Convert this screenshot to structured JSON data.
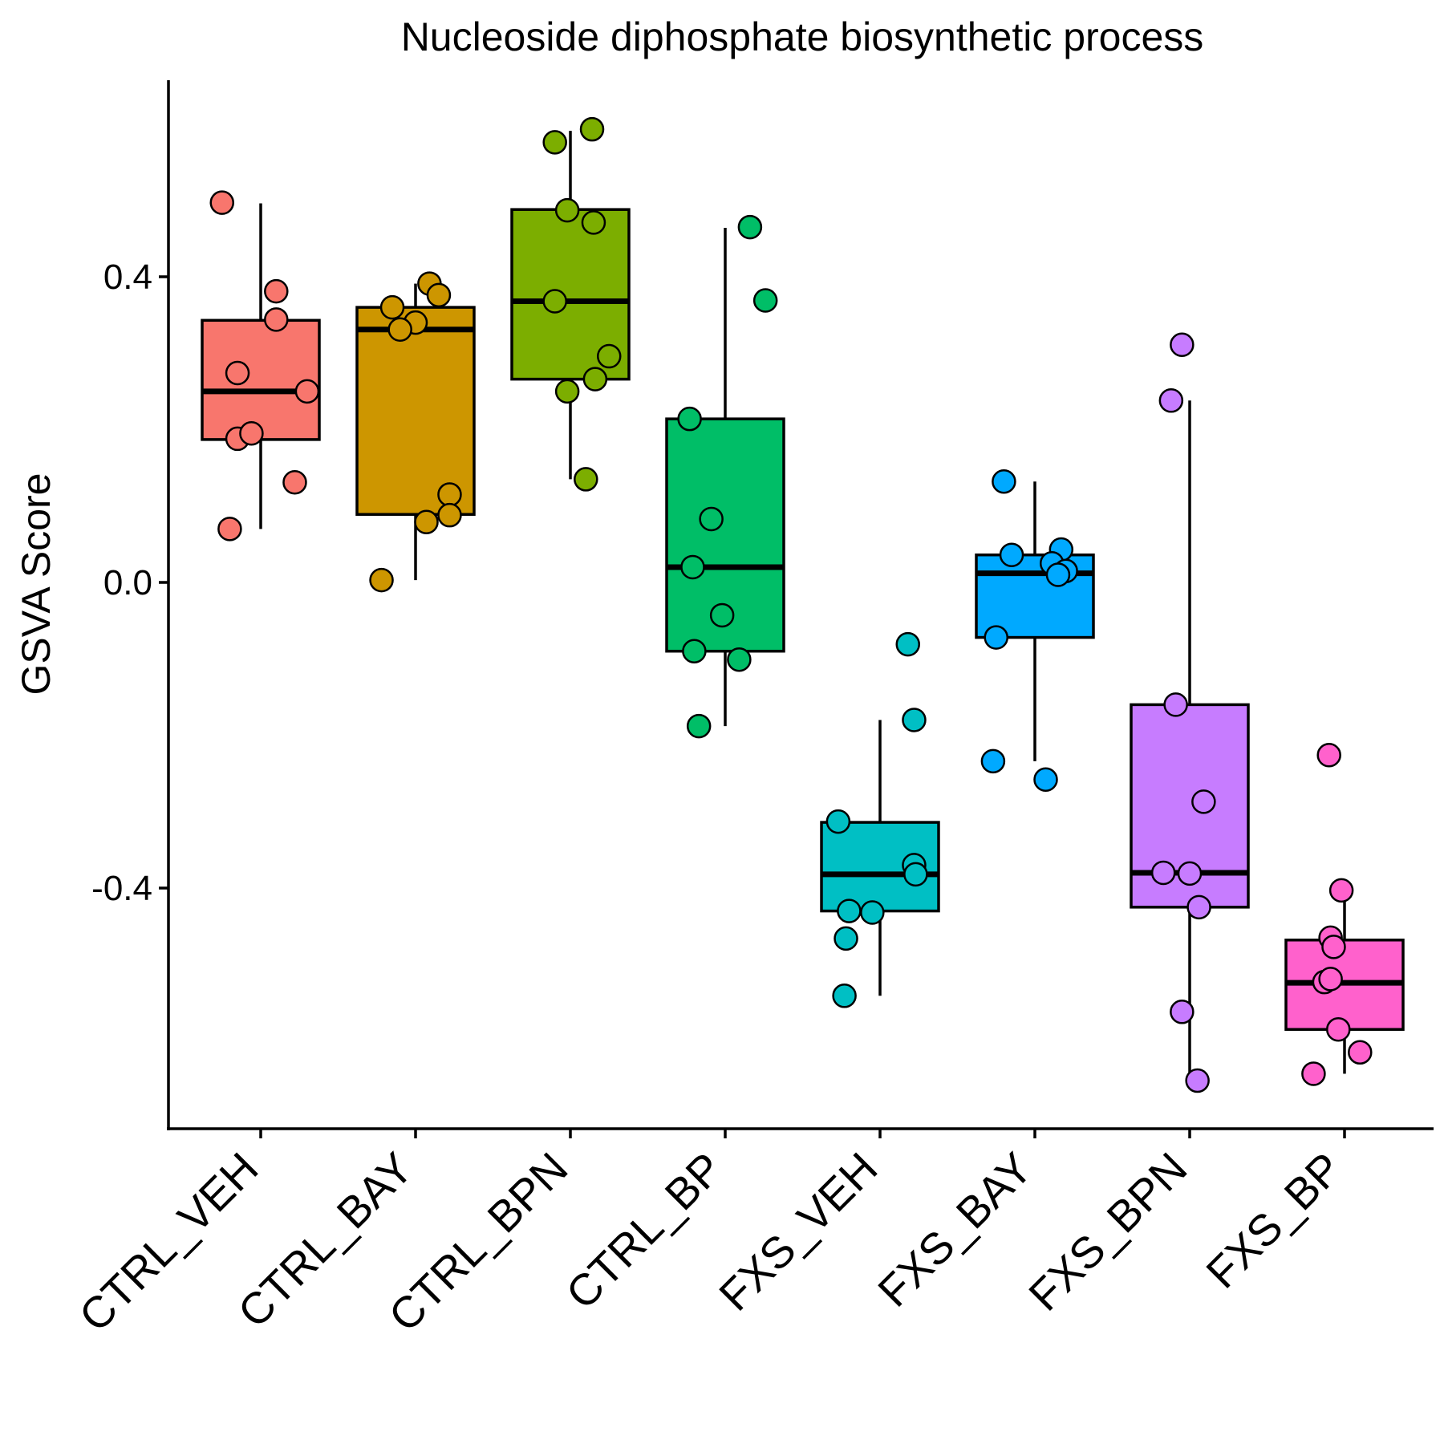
{
  "chart_data": {
    "type": "boxplot",
    "title": "Nucleoside diphosphate biosynthetic process",
    "xlabel": "",
    "ylabel": "GSVA Score",
    "ylim": [
      -0.71,
      0.65
    ],
    "yticks": [
      -0.4,
      0.0,
      0.4
    ],
    "ytick_labels": [
      "-0.4",
      "0.0",
      "0.4"
    ],
    "grid": false,
    "legend": "none",
    "categories": [
      "CTRL_VEH",
      "CTRL_BAY",
      "CTRL_BPN",
      "CTRL_BP",
      "FXS_VEH",
      "FXS_BAY",
      "FXS_BPN",
      "FXS_BP"
    ],
    "colors": [
      "#F8766D",
      "#CD9600",
      "#7CAE00",
      "#00BE67",
      "#00BFC4",
      "#00A9FF",
      "#C77CFF",
      "#FF61CC"
    ],
    "groups": [
      {
        "name": "CTRL_VEH",
        "whisker_low": 0.07,
        "q1": 0.187,
        "median": 0.25,
        "q3": 0.343,
        "whisker_high": 0.496,
        "points": [
          {
            "j": -0.25,
            "y": 0.497
          },
          {
            "j": 0.1,
            "y": 0.381
          },
          {
            "j": 0.1,
            "y": 0.344
          },
          {
            "j": -0.15,
            "y": 0.274
          },
          {
            "j": 0.3,
            "y": 0.25
          },
          {
            "j": -0.15,
            "y": 0.188
          },
          {
            "j": -0.06,
            "y": 0.195
          },
          {
            "j": 0.22,
            "y": 0.131
          },
          {
            "j": -0.2,
            "y": 0.07
          }
        ]
      },
      {
        "name": "CTRL_BAY",
        "whisker_low": 0.003,
        "q1": 0.089,
        "median": 0.331,
        "q3": 0.36,
        "whisker_high": 0.391,
        "points": [
          {
            "j": 0.09,
            "y": 0.391
          },
          {
            "j": 0.15,
            "y": 0.376
          },
          {
            "j": -0.15,
            "y": 0.36
          },
          {
            "j": 0.0,
            "y": 0.34
          },
          {
            "j": -0.1,
            "y": 0.331
          },
          {
            "j": 0.22,
            "y": 0.115
          },
          {
            "j": 0.22,
            "y": 0.088
          },
          {
            "j": 0.07,
            "y": 0.079
          },
          {
            "j": -0.22,
            "y": 0.003
          }
        ]
      },
      {
        "name": "CTRL_BPN",
        "whisker_low": 0.135,
        "q1": 0.266,
        "median": 0.368,
        "q3": 0.488,
        "whisker_high": 0.591,
        "points": [
          {
            "j": 0.14,
            "y": 0.593
          },
          {
            "j": -0.1,
            "y": 0.576
          },
          {
            "j": -0.02,
            "y": 0.487
          },
          {
            "j": 0.15,
            "y": 0.471
          },
          {
            "j": -0.1,
            "y": 0.368
          },
          {
            "j": 0.25,
            "y": 0.296
          },
          {
            "j": 0.16,
            "y": 0.266
          },
          {
            "j": -0.02,
            "y": 0.25
          },
          {
            "j": 0.1,
            "y": 0.135
          }
        ]
      },
      {
        "name": "CTRL_BP",
        "whisker_low": -0.188,
        "q1": -0.09,
        "median": 0.02,
        "q3": 0.214,
        "whisker_high": 0.464,
        "points": [
          {
            "j": 0.16,
            "y": 0.465
          },
          {
            "j": 0.26,
            "y": 0.369
          },
          {
            "j": -0.23,
            "y": 0.214
          },
          {
            "j": -0.09,
            "y": 0.083
          },
          {
            "j": -0.21,
            "y": 0.02
          },
          {
            "j": -0.02,
            "y": -0.043
          },
          {
            "j": -0.2,
            "y": -0.09
          },
          {
            "j": 0.09,
            "y": -0.101
          },
          {
            "j": -0.17,
            "y": -0.188
          }
        ]
      },
      {
        "name": "FXS_VEH",
        "whisker_low": -0.541,
        "q1": -0.43,
        "median": -0.382,
        "q3": -0.314,
        "whisker_high": -0.18,
        "points": [
          {
            "j": 0.18,
            "y": -0.081
          },
          {
            "j": 0.22,
            "y": -0.18
          },
          {
            "j": -0.27,
            "y": -0.313
          },
          {
            "j": 0.22,
            "y": -0.37
          },
          {
            "j": 0.23,
            "y": -0.382
          },
          {
            "j": -0.2,
            "y": -0.43
          },
          {
            "j": -0.05,
            "y": -0.432
          },
          {
            "j": -0.22,
            "y": -0.466
          },
          {
            "j": -0.23,
            "y": -0.541
          }
        ]
      },
      {
        "name": "FXS_BAY",
        "whisker_low": -0.234,
        "q1": -0.072,
        "median": 0.012,
        "q3": 0.036,
        "whisker_high": 0.132,
        "points": [
          {
            "j": -0.2,
            "y": 0.132
          },
          {
            "j": 0.17,
            "y": 0.043
          },
          {
            "j": -0.15,
            "y": 0.036
          },
          {
            "j": 0.11,
            "y": 0.025
          },
          {
            "j": 0.2,
            "y": 0.015
          },
          {
            "j": 0.15,
            "y": 0.01
          },
          {
            "j": -0.25,
            "y": -0.072
          },
          {
            "j": -0.27,
            "y": -0.234
          },
          {
            "j": 0.07,
            "y": -0.258
          }
        ]
      },
      {
        "name": "FXS_BPN",
        "whisker_low": -0.652,
        "q1": -0.425,
        "median": -0.38,
        "q3": -0.16,
        "whisker_high": 0.238,
        "points": [
          {
            "j": -0.05,
            "y": 0.311
          },
          {
            "j": -0.12,
            "y": 0.238
          },
          {
            "j": -0.09,
            "y": -0.16
          },
          {
            "j": 0.09,
            "y": -0.287
          },
          {
            "j": -0.17,
            "y": -0.38
          },
          {
            "j": 0.0,
            "y": -0.381
          },
          {
            "j": 0.06,
            "y": -0.425
          },
          {
            "j": -0.05,
            "y": -0.562
          },
          {
            "j": 0.05,
            "y": -0.652
          }
        ]
      },
      {
        "name": "FXS_BP",
        "whisker_low": -0.643,
        "q1": -0.585,
        "median": -0.524,
        "q3": -0.468,
        "whisker_high": -0.405,
        "points": [
          {
            "j": -0.1,
            "y": -0.226
          },
          {
            "j": -0.02,
            "y": -0.403
          },
          {
            "j": -0.09,
            "y": -0.465
          },
          {
            "j": -0.07,
            "y": -0.477
          },
          {
            "j": -0.13,
            "y": -0.523
          },
          {
            "j": -0.09,
            "y": -0.519
          },
          {
            "j": -0.04,
            "y": -0.585
          },
          {
            "j": 0.1,
            "y": -0.615
          },
          {
            "j": -0.2,
            "y": -0.643
          }
        ]
      }
    ]
  }
}
